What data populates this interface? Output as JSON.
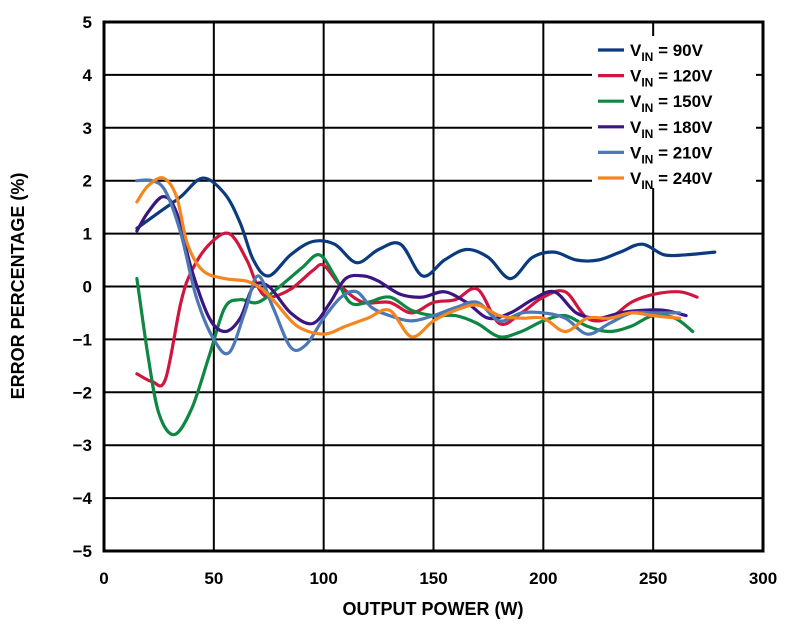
{
  "chart_data": {
    "type": "line",
    "title": "",
    "xlabel": "OUTPUT POWER (W)",
    "ylabel": "ERROR PERCENTAGE (%)",
    "xlim": [
      0,
      300
    ],
    "ylim": [
      -5,
      5
    ],
    "xticks": [
      0,
      50,
      100,
      150,
      200,
      250,
      300
    ],
    "yticks": [
      -5,
      -4,
      -3,
      -2,
      -1,
      0,
      1,
      2,
      3,
      4,
      5
    ],
    "xtick_labels": [
      "0",
      "50",
      "100",
      "150",
      "200",
      "250",
      "300"
    ],
    "ytick_labels": [
      "−5",
      "−4",
      "−3",
      "−2",
      "−1",
      "0",
      "1",
      "2",
      "3",
      "4",
      "5"
    ],
    "grid": true,
    "legend_position": "top-right",
    "series": [
      {
        "name": "V_IN = 90V",
        "legend_main": "V",
        "legend_sub": "IN",
        "legend_rest": " = 90V",
        "color": "#0b3a7e",
        "x": [
          15,
          25,
          35,
          45,
          55,
          62,
          68,
          75,
          85,
          95,
          105,
          115,
          125,
          135,
          145,
          155,
          165,
          175,
          185,
          195,
          205,
          215,
          225,
          235,
          245,
          255,
          265,
          278
        ],
        "y": [
          1.1,
          1.4,
          1.7,
          2.05,
          1.75,
          1.2,
          0.5,
          0.2,
          0.6,
          0.85,
          0.8,
          0.45,
          0.7,
          0.8,
          0.2,
          0.5,
          0.7,
          0.55,
          0.15,
          0.55,
          0.65,
          0.5,
          0.5,
          0.65,
          0.8,
          0.6,
          0.6,
          0.65
        ]
      },
      {
        "name": "V_IN = 120V",
        "legend_main": "V",
        "legend_sub": "IN",
        "legend_rest": " = 120V",
        "color": "#d0163f",
        "x": [
          15,
          22,
          28,
          35,
          40,
          48,
          57,
          65,
          70,
          75,
          85,
          95,
          100,
          108,
          118,
          130,
          140,
          150,
          160,
          170,
          180,
          190,
          200,
          210,
          220,
          230,
          240,
          250,
          262,
          270
        ],
        "y": [
          -1.65,
          -1.8,
          -1.75,
          -0.3,
          0.3,
          0.8,
          1.0,
          0.5,
          0.0,
          -0.2,
          -0.05,
          0.3,
          0.4,
          0.0,
          -0.3,
          -0.3,
          -0.5,
          -0.3,
          -0.25,
          -0.05,
          -0.7,
          -0.5,
          -0.2,
          -0.1,
          -0.6,
          -0.6,
          -0.3,
          -0.15,
          -0.1,
          -0.2
        ]
      },
      {
        "name": "V_IN = 150V",
        "legend_main": "V",
        "legend_sub": "IN",
        "legend_rest": " = 150V",
        "color": "#0e8743",
        "x": [
          15,
          20,
          25,
          32,
          40,
          48,
          55,
          62,
          70,
          80,
          90,
          98,
          105,
          112,
          120,
          130,
          140,
          150,
          160,
          170,
          180,
          190,
          200,
          210,
          220,
          230,
          240,
          250,
          260,
          268
        ],
        "y": [
          0.15,
          -1.3,
          -2.4,
          -2.8,
          -2.3,
          -1.3,
          -0.4,
          -0.25,
          -0.3,
          0.0,
          0.35,
          0.6,
          0.2,
          -0.3,
          -0.3,
          -0.2,
          -0.45,
          -0.55,
          -0.55,
          -0.7,
          -0.95,
          -0.85,
          -0.65,
          -0.55,
          -0.75,
          -0.85,
          -0.75,
          -0.55,
          -0.6,
          -0.85
        ]
      },
      {
        "name": "V_IN = 180V",
        "legend_main": "V",
        "legend_sub": "IN",
        "legend_rest": " = 180V",
        "color": "#3b1680",
        "x": [
          15,
          20,
          27,
          33,
          40,
          48,
          55,
          62,
          68,
          75,
          85,
          95,
          103,
          110,
          118,
          125,
          135,
          145,
          155,
          165,
          175,
          185,
          195,
          205,
          215,
          225,
          235,
          245,
          255,
          265
        ],
        "y": [
          1.05,
          1.4,
          1.7,
          1.4,
          0.3,
          -0.6,
          -0.85,
          -0.6,
          0.0,
          0.0,
          -0.5,
          -0.7,
          -0.3,
          0.15,
          0.2,
          0.1,
          -0.15,
          -0.2,
          -0.1,
          -0.3,
          -0.6,
          -0.5,
          -0.25,
          -0.1,
          -0.5,
          -0.6,
          -0.5,
          -0.45,
          -0.45,
          -0.55
        ]
      },
      {
        "name": "V_IN = 210V",
        "legend_main": "V",
        "legend_sub": "IN",
        "legend_rest": " = 210V",
        "color": "#4c79b5",
        "x": [
          15,
          22,
          28,
          35,
          42,
          50,
          57,
          64,
          70,
          77,
          85,
          92,
          100,
          108,
          115,
          122,
          130,
          140,
          150,
          160,
          170,
          180,
          190,
          200,
          210,
          220,
          230,
          240,
          250,
          262
        ],
        "y": [
          2.0,
          2.0,
          1.8,
          1.0,
          -0.2,
          -1.0,
          -1.25,
          -0.5,
          0.2,
          -0.4,
          -1.15,
          -1.1,
          -0.6,
          -0.2,
          -0.1,
          -0.4,
          -0.55,
          -0.65,
          -0.55,
          -0.4,
          -0.3,
          -0.65,
          -0.5,
          -0.5,
          -0.6,
          -0.9,
          -0.7,
          -0.5,
          -0.5,
          -0.5
        ]
      },
      {
        "name": "V_IN = 240V",
        "legend_main": "V",
        "legend_sub": "IN",
        "legend_rest": " = 240V",
        "color": "#f5861f",
        "x": [
          15,
          20,
          27,
          33,
          38,
          45,
          55,
          65,
          72,
          78,
          88,
          100,
          110,
          120,
          130,
          140,
          150,
          160,
          170,
          180,
          190,
          200,
          210,
          220,
          230,
          240,
          250,
          262
        ],
        "y": [
          1.6,
          1.9,
          2.05,
          1.7,
          0.8,
          0.3,
          0.15,
          0.1,
          -0.05,
          -0.3,
          -0.75,
          -0.9,
          -0.75,
          -0.6,
          -0.45,
          -0.95,
          -0.65,
          -0.45,
          -0.35,
          -0.55,
          -0.6,
          -0.6,
          -0.85,
          -0.6,
          -0.6,
          -0.5,
          -0.55,
          -0.6
        ]
      }
    ]
  }
}
